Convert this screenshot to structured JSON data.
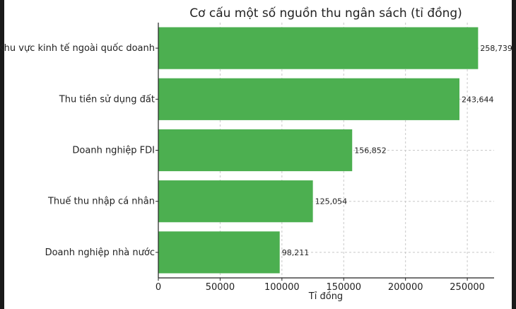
{
  "chart_data": {
    "type": "bar",
    "orientation": "horizontal",
    "title": "Cơ cấu một số nguồn thu ngân sách (tỉ đồng)",
    "xlabel": "Tỉ đồng",
    "ylabel": "",
    "categories": [
      "Khu vực kinh tế ngoài quốc doanh",
      "Thu tiền sử dụng đất",
      "Doanh nghiệp FDI",
      "Thuế thu nhập cá nhân",
      "Doanh nghiệp nhà nước"
    ],
    "values": [
      258739,
      243644,
      156852,
      125054,
      98211
    ],
    "value_labels": [
      "258,739",
      "243,644",
      "156,852",
      "125,054",
      "98,211"
    ],
    "xlim": [
      0,
      271676
    ],
    "xticks": [
      0,
      50000,
      100000,
      150000,
      200000,
      250000
    ],
    "xtick_labels": [
      "0",
      "50000",
      "100000",
      "150000",
      "200000",
      "250000"
    ],
    "grid": true,
    "bar_color": "#4caf50"
  }
}
